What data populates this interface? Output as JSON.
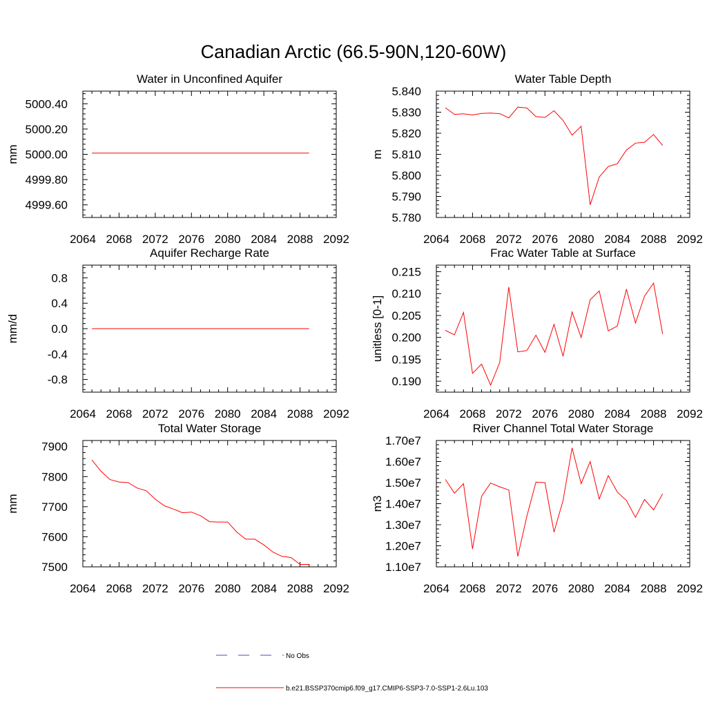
{
  "title": "Canadian Arctic (66.5-90N,120-60W)",
  "legend": [
    {
      "label": "No Obs",
      "color": "#4a4ab0",
      "dash": true
    },
    {
      "label": "b.e21.BSSP370cmip6.f09_g17.CMIP6-SSP3-7.0-SSP1-2.6Lu.103",
      "color": "#ff0000",
      "dash": false
    }
  ],
  "chart_data": [
    {
      "type": "line",
      "title": "Water in Unconfined Aquifer",
      "xlabel": "",
      "ylabel": "mm",
      "xlim": [
        2064,
        2092
      ],
      "ylim": [
        4999.5,
        5000.5
      ],
      "xticks": [
        2064,
        2068,
        2072,
        2076,
        2080,
        2084,
        2088,
        2092
      ],
      "xtick_labels": [
        "2064",
        "2068",
        "2072",
        "2076",
        "2080",
        "2084",
        "2088",
        "2092"
      ],
      "yticks": [
        4999.6,
        4999.8,
        5000.0,
        5000.2,
        5000.4
      ],
      "ytick_labels": [
        "4999.60",
        "4999.80",
        "5000.00",
        "5000.20",
        "5000.40"
      ],
      "series": [
        {
          "color": "#ff0000",
          "x": [
            2065,
            2066,
            2067,
            2068,
            2069,
            2070,
            2071,
            2072,
            2073,
            2074,
            2075,
            2076,
            2077,
            2078,
            2079,
            2080,
            2081,
            2082,
            2083,
            2084,
            2085,
            2086,
            2087,
            2088,
            2089
          ],
          "y": [
            5000.01,
            5000.01,
            5000.01,
            5000.01,
            5000.01,
            5000.01,
            5000.01,
            5000.01,
            5000.01,
            5000.01,
            5000.01,
            5000.01,
            5000.01,
            5000.01,
            5000.01,
            5000.01,
            5000.01,
            5000.01,
            5000.01,
            5000.01,
            5000.01,
            5000.01,
            5000.01,
            5000.01,
            5000.01
          ]
        }
      ]
    },
    {
      "type": "line",
      "title": "Water Table Depth",
      "xlabel": "",
      "ylabel": "m",
      "xlim": [
        2064,
        2092
      ],
      "ylim": [
        5.78,
        5.84
      ],
      "xticks": [
        2064,
        2068,
        2072,
        2076,
        2080,
        2084,
        2088,
        2092
      ],
      "xtick_labels": [
        "2064",
        "2068",
        "2072",
        "2076",
        "2080",
        "2084",
        "2088",
        "2092"
      ],
      "yticks": [
        5.78,
        5.79,
        5.8,
        5.81,
        5.82,
        5.83,
        5.84
      ],
      "ytick_labels": [
        "5.780",
        "5.790",
        "5.800",
        "5.810",
        "5.820",
        "5.830",
        "5.840"
      ],
      "series": [
        {
          "color": "#ff0000",
          "x": [
            2065,
            2066,
            2067,
            2068,
            2069,
            2070,
            2071,
            2072,
            2073,
            2074,
            2075,
            2076,
            2077,
            2078,
            2079,
            2080,
            2081,
            2082,
            2083,
            2084,
            2085,
            2086,
            2087,
            2088,
            2089
          ],
          "y": [
            5.8321,
            5.829,
            5.8292,
            5.8287,
            5.8294,
            5.8296,
            5.8293,
            5.8273,
            5.8324,
            5.832,
            5.8279,
            5.8275,
            5.8307,
            5.8261,
            5.8191,
            5.8233,
            5.786,
            5.7992,
            5.8042,
            5.8055,
            5.812,
            5.8153,
            5.8157,
            5.8194,
            5.8142
          ]
        }
      ]
    },
    {
      "type": "line",
      "title": "Aquifer Recharge Rate",
      "xlabel": "",
      "ylabel": "mm/d",
      "xlim": [
        2064,
        2092
      ],
      "ylim": [
        -1.0,
        1.0
      ],
      "xticks": [
        2064,
        2068,
        2072,
        2076,
        2080,
        2084,
        2088,
        2092
      ],
      "xtick_labels": [
        "2064",
        "2068",
        "2072",
        "2076",
        "2080",
        "2084",
        "2088",
        "2092"
      ],
      "yticks": [
        -0.8,
        -0.4,
        0.0,
        0.4,
        0.8
      ],
      "ytick_labels": [
        "-0.8",
        "-0.4",
        "0.0",
        "0.4",
        "0.8"
      ],
      "series": [
        {
          "color": "#ff0000",
          "x": [
            2065,
            2066,
            2067,
            2068,
            2069,
            2070,
            2071,
            2072,
            2073,
            2074,
            2075,
            2076,
            2077,
            2078,
            2079,
            2080,
            2081,
            2082,
            2083,
            2084,
            2085,
            2086,
            2087,
            2088,
            2089
          ],
          "y": [
            0,
            0,
            0,
            0,
            0,
            0,
            0,
            0,
            0,
            0,
            0,
            0,
            0,
            0,
            0,
            0,
            0,
            0,
            0,
            0,
            0,
            0,
            0,
            0,
            0
          ]
        }
      ]
    },
    {
      "type": "line",
      "title": "Frac Water Table at Surface",
      "xlabel": "",
      "ylabel": "unitless [0-1]",
      "xlim": [
        2064,
        2092
      ],
      "ylim": [
        0.1875,
        0.2165
      ],
      "xticks": [
        2064,
        2068,
        2072,
        2076,
        2080,
        2084,
        2088,
        2092
      ],
      "xtick_labels": [
        "2064",
        "2068",
        "2072",
        "2076",
        "2080",
        "2084",
        "2088",
        "2092"
      ],
      "yticks": [
        0.19,
        0.195,
        0.2,
        0.205,
        0.21,
        0.215
      ],
      "ytick_labels": [
        "0.190",
        "0.195",
        "0.200",
        "0.205",
        "0.210",
        "0.215"
      ],
      "series": [
        {
          "color": "#ff0000",
          "x": [
            2065,
            2066,
            2067,
            2068,
            2069,
            2070,
            2071,
            2072,
            2073,
            2074,
            2075,
            2076,
            2077,
            2078,
            2079,
            2080,
            2081,
            2082,
            2083,
            2084,
            2085,
            2086,
            2087,
            2088,
            2089
          ],
          "y": [
            0.2016,
            0.2006,
            0.2057,
            0.1918,
            0.1939,
            0.1891,
            0.1943,
            0.2115,
            0.1967,
            0.197,
            0.2005,
            0.1966,
            0.203,
            0.1957,
            0.2058,
            0.2,
            0.2086,
            0.2106,
            0.2015,
            0.2026,
            0.211,
            0.2033,
            0.2094,
            0.2124,
            0.2008
          ]
        }
      ]
    },
    {
      "type": "line",
      "title": "Total Water Storage",
      "xlabel": "",
      "ylabel": "mm",
      "xlim": [
        2064,
        2092
      ],
      "ylim": [
        7500,
        7920
      ],
      "xticks": [
        2064,
        2068,
        2072,
        2076,
        2080,
        2084,
        2088,
        2092
      ],
      "xtick_labels": [
        "2064",
        "2068",
        "2072",
        "2076",
        "2080",
        "2084",
        "2088",
        "2092"
      ],
      "yticks": [
        7500,
        7600,
        7700,
        7800,
        7900
      ],
      "ytick_labels": [
        "7500",
        "7600",
        "7700",
        "7800",
        "7900"
      ],
      "series": [
        {
          "color": "#ff0000",
          "x": [
            2065,
            2066,
            2067,
            2068,
            2069,
            2070,
            2071,
            2072,
            2073,
            2074,
            2075,
            2076,
            2077,
            2078,
            2079,
            2080,
            2081,
            2082,
            2083,
            2084,
            2085,
            2086,
            2087,
            2088,
            2089
          ],
          "y": [
            7855,
            7818,
            7790,
            7782,
            7780,
            7762,
            7753,
            7725,
            7703,
            7692,
            7680,
            7682,
            7670,
            7650,
            7649,
            7649,
            7616,
            7592,
            7592,
            7573,
            7549,
            7535,
            7531,
            7508,
            7508
          ]
        }
      ]
    },
    {
      "type": "line",
      "title": "River Channel Total Water Storage",
      "xlabel": "",
      "ylabel": "m3",
      "xlim": [
        2064,
        2092
      ],
      "ylim": [
        11000000,
        17000000
      ],
      "xticks": [
        2064,
        2068,
        2072,
        2076,
        2080,
        2084,
        2088,
        2092
      ],
      "xtick_labels": [
        "2064",
        "2068",
        "2072",
        "2076",
        "2080",
        "2084",
        "2088",
        "2092"
      ],
      "yticks": [
        11000000,
        12000000,
        13000000,
        14000000,
        15000000,
        16000000,
        17000000
      ],
      "ytick_labels": [
        "1.10e7",
        "1.20e7",
        "1.30e7",
        "1.40e7",
        "1.50e7",
        "1.60e7",
        "1.70e7"
      ],
      "series": [
        {
          "color": "#ff0000",
          "x": [
            2065,
            2066,
            2067,
            2068,
            2069,
            2070,
            2071,
            2072,
            2073,
            2074,
            2075,
            2076,
            2077,
            2078,
            2079,
            2080,
            2081,
            2082,
            2083,
            2084,
            2085,
            2086,
            2087,
            2088,
            2089
          ],
          "y": [
            15150000,
            14500000,
            14950000,
            11850000,
            14350000,
            14980000,
            14800000,
            14650000,
            11500000,
            13400000,
            15020000,
            15000000,
            12650000,
            14150000,
            16650000,
            14950000,
            16000000,
            14220000,
            15330000,
            14550000,
            14150000,
            13350000,
            14200000,
            13700000,
            14470000
          ]
        }
      ]
    }
  ]
}
